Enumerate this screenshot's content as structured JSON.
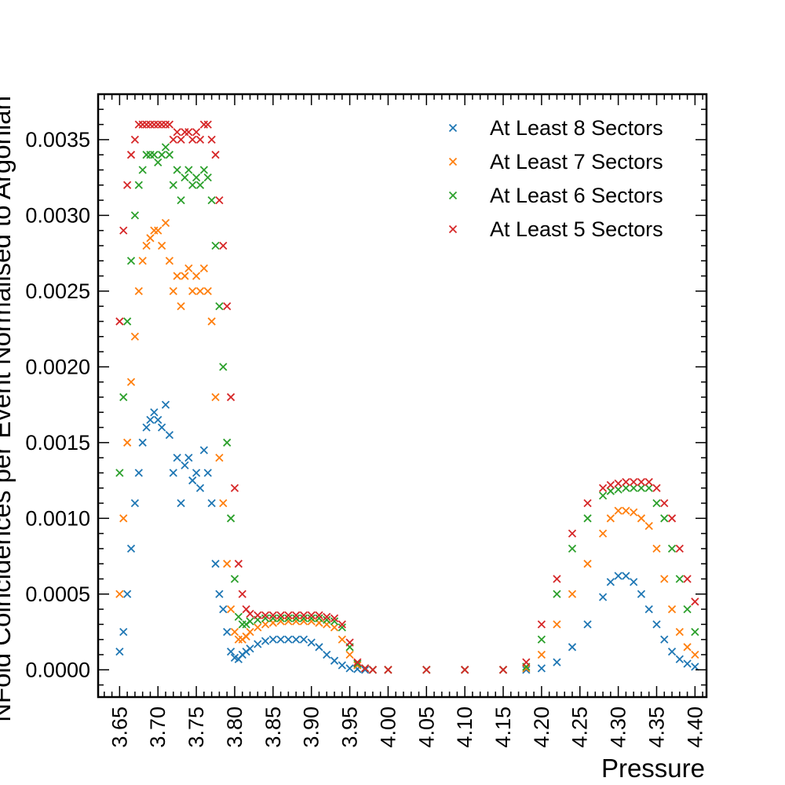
{
  "chart_data": {
    "type": "scatter",
    "marker": "x",
    "title": "",
    "xlabel": "Pressure",
    "ylabel": "NFold Coincidences per Event Normalised to Argonian",
    "xlim": [
      3.622,
      4.415
    ],
    "ylim": [
      -0.00018,
      0.0038
    ],
    "xticks": [
      "3.65",
      "3.70",
      "3.75",
      "3.80",
      "3.85",
      "3.90",
      "3.95",
      "4.00",
      "4.05",
      "4.10",
      "4.15",
      "4.20",
      "4.25",
      "4.30",
      "4.35",
      "4.40"
    ],
    "xtick_values": [
      3.65,
      3.7,
      3.75,
      3.8,
      3.85,
      3.9,
      3.95,
      4.0,
      4.05,
      4.1,
      4.15,
      4.2,
      4.25,
      4.3,
      4.35,
      4.4
    ],
    "yticks": [
      "0.0000",
      "0.0005",
      "0.0010",
      "0.0015",
      "0.0020",
      "0.0025",
      "0.0030",
      "0.0035"
    ],
    "ytick_values": [
      0,
      0.0005,
      0.001,
      0.0015,
      0.002,
      0.0025,
      0.003,
      0.0035
    ],
    "grid": false,
    "legend_position": "top-right",
    "series": [
      {
        "name": "At Least 8 Sectors",
        "color": "#1f77b4",
        "x": [
          3.65,
          3.655,
          3.66,
          3.665,
          3.67,
          3.675,
          3.68,
          3.685,
          3.69,
          3.695,
          3.7,
          3.705,
          3.71,
          3.715,
          3.72,
          3.725,
          3.73,
          3.735,
          3.74,
          3.745,
          3.75,
          3.755,
          3.76,
          3.765,
          3.77,
          3.775,
          3.78,
          3.785,
          3.79,
          3.795,
          3.8,
          3.805,
          3.81,
          3.815,
          3.82,
          3.83,
          3.84,
          3.85,
          3.86,
          3.87,
          3.88,
          3.89,
          3.9,
          3.91,
          3.92,
          3.93,
          3.94,
          3.95,
          3.96,
          3.97,
          3.98,
          4.0,
          4.05,
          4.1,
          4.15,
          4.18,
          4.2,
          4.22,
          4.24,
          4.26,
          4.28,
          4.29,
          4.3,
          4.31,
          4.32,
          4.33,
          4.34,
          4.35,
          4.36,
          4.37,
          4.38,
          4.39,
          4.4
        ],
        "y": [
          0.00012,
          0.00025,
          0.0005,
          0.0008,
          0.0011,
          0.0013,
          0.0015,
          0.0016,
          0.00165,
          0.0017,
          0.00165,
          0.0016,
          0.00175,
          0.00155,
          0.0013,
          0.0014,
          0.0011,
          0.00135,
          0.0014,
          0.00125,
          0.0013,
          0.0012,
          0.00145,
          0.0013,
          0.0011,
          0.0007,
          0.0005,
          0.0004,
          0.00025,
          0.00012,
          8e-05,
          7e-05,
          0.0001,
          0.00012,
          0.00014,
          0.00017,
          0.00019,
          0.0002,
          0.0002,
          0.0002,
          0.0002,
          0.0002,
          0.00018,
          0.00015,
          0.0001,
          6e-05,
          3e-05,
          1e-05,
          5e-06,
          0.0,
          0.0,
          0.0,
          0.0,
          0.0,
          0.0,
          0.0,
          1e-05,
          5e-05,
          0.00015,
          0.0003,
          0.00048,
          0.00058,
          0.00062,
          0.00062,
          0.00058,
          0.0005,
          0.0004,
          0.0003,
          0.0002,
          0.00012,
          7e-05,
          4e-05,
          2e-05
        ]
      },
      {
        "name": "At Least 7 Sectors",
        "color": "#ff7f0e",
        "x": [
          3.65,
          3.655,
          3.66,
          3.665,
          3.67,
          3.675,
          3.68,
          3.685,
          3.69,
          3.695,
          3.7,
          3.705,
          3.71,
          3.715,
          3.72,
          3.725,
          3.73,
          3.735,
          3.74,
          3.745,
          3.75,
          3.755,
          3.76,
          3.765,
          3.77,
          3.775,
          3.78,
          3.785,
          3.79,
          3.795,
          3.8,
          3.805,
          3.81,
          3.815,
          3.82,
          3.83,
          3.84,
          3.85,
          3.86,
          3.87,
          3.88,
          3.89,
          3.9,
          3.91,
          3.92,
          3.93,
          3.94,
          3.95,
          3.96,
          3.97,
          3.98,
          4.0,
          4.05,
          4.1,
          4.15,
          4.18,
          4.2,
          4.22,
          4.24,
          4.26,
          4.28,
          4.29,
          4.3,
          4.31,
          4.32,
          4.33,
          4.34,
          4.35,
          4.36,
          4.37,
          4.38,
          4.39,
          4.4
        ],
        "y": [
          0.0005,
          0.001,
          0.0015,
          0.0019,
          0.0022,
          0.0025,
          0.0027,
          0.0028,
          0.00285,
          0.0029,
          0.0029,
          0.0028,
          0.00295,
          0.0027,
          0.0025,
          0.0026,
          0.0024,
          0.0026,
          0.00265,
          0.0025,
          0.0026,
          0.0025,
          0.00265,
          0.0025,
          0.0023,
          0.0018,
          0.0014,
          0.0011,
          0.0007,
          0.0004,
          0.00025,
          0.0002,
          0.0002,
          0.00022,
          0.00025,
          0.00028,
          0.0003,
          0.00031,
          0.00032,
          0.00032,
          0.00032,
          0.00032,
          0.00032,
          0.00031,
          0.0003,
          0.00028,
          0.0002,
          0.0001,
          3e-05,
          1e-05,
          0.0,
          0.0,
          0.0,
          0.0,
          0.0,
          1e-05,
          0.0001,
          0.0003,
          0.0005,
          0.0007,
          0.0009,
          0.001,
          0.00105,
          0.00105,
          0.00104,
          0.001,
          0.00095,
          0.0008,
          0.0006,
          0.0004,
          0.00025,
          0.00015,
          0.0001
        ]
      },
      {
        "name": "At Least 6 Sectors",
        "color": "#2ca02c",
        "x": [
          3.65,
          3.655,
          3.66,
          3.665,
          3.67,
          3.675,
          3.68,
          3.685,
          3.69,
          3.695,
          3.7,
          3.705,
          3.71,
          3.715,
          3.72,
          3.725,
          3.73,
          3.735,
          3.74,
          3.745,
          3.75,
          3.755,
          3.76,
          3.765,
          3.77,
          3.775,
          3.78,
          3.785,
          3.79,
          3.795,
          3.8,
          3.805,
          3.81,
          3.815,
          3.82,
          3.83,
          3.84,
          3.85,
          3.86,
          3.87,
          3.88,
          3.89,
          3.9,
          3.91,
          3.92,
          3.93,
          3.94,
          3.95,
          3.96,
          3.97,
          3.98,
          4.0,
          4.05,
          4.1,
          4.15,
          4.18,
          4.2,
          4.22,
          4.24,
          4.26,
          4.28,
          4.29,
          4.3,
          4.31,
          4.32,
          4.33,
          4.34,
          4.35,
          4.36,
          4.37,
          4.38,
          4.39,
          4.4
        ],
        "y": [
          0.0013,
          0.0018,
          0.0023,
          0.0027,
          0.003,
          0.0032,
          0.0033,
          0.0034,
          0.0034,
          0.0034,
          0.00335,
          0.0034,
          0.00345,
          0.0034,
          0.0032,
          0.0033,
          0.0031,
          0.00325,
          0.0033,
          0.0032,
          0.00325,
          0.0032,
          0.0033,
          0.00325,
          0.0031,
          0.0028,
          0.0024,
          0.002,
          0.0015,
          0.001,
          0.0006,
          0.00035,
          0.0003,
          0.0003,
          0.00032,
          0.00033,
          0.00034,
          0.00034,
          0.00034,
          0.00034,
          0.00034,
          0.00034,
          0.00034,
          0.00034,
          0.00033,
          0.00032,
          0.00028,
          0.00015,
          4e-05,
          1e-05,
          0.0,
          0.0,
          0.0,
          0.0,
          0.0,
          2e-05,
          0.0002,
          0.0005,
          0.0008,
          0.001,
          0.00115,
          0.00118,
          0.00119,
          0.0012,
          0.0012,
          0.0012,
          0.0012,
          0.0011,
          0.001,
          0.0008,
          0.0006,
          0.0004,
          0.00025
        ]
      },
      {
        "name": "At Least 5 Sectors",
        "color": "#d62728",
        "x": [
          3.65,
          3.655,
          3.66,
          3.665,
          3.67,
          3.675,
          3.68,
          3.685,
          3.69,
          3.695,
          3.7,
          3.705,
          3.71,
          3.715,
          3.72,
          3.725,
          3.73,
          3.735,
          3.74,
          3.745,
          3.75,
          3.755,
          3.76,
          3.765,
          3.77,
          3.775,
          3.78,
          3.785,
          3.79,
          3.795,
          3.8,
          3.805,
          3.81,
          3.815,
          3.82,
          3.83,
          3.84,
          3.85,
          3.86,
          3.87,
          3.88,
          3.89,
          3.9,
          3.91,
          3.92,
          3.93,
          3.94,
          3.95,
          3.96,
          3.97,
          3.98,
          4.0,
          4.05,
          4.1,
          4.15,
          4.18,
          4.2,
          4.22,
          4.24,
          4.26,
          4.28,
          4.29,
          4.3,
          4.31,
          4.32,
          4.33,
          4.34,
          4.35,
          4.36,
          4.37,
          4.38,
          4.39,
          4.4
        ],
        "y": [
          0.0023,
          0.0029,
          0.0032,
          0.0034,
          0.0035,
          0.0036,
          0.0036,
          0.0036,
          0.0036,
          0.0036,
          0.0036,
          0.0036,
          0.0036,
          0.0036,
          0.0035,
          0.00355,
          0.0035,
          0.00355,
          0.00355,
          0.0035,
          0.00355,
          0.0035,
          0.0036,
          0.0036,
          0.0035,
          0.0034,
          0.0031,
          0.0028,
          0.0024,
          0.0018,
          0.0012,
          0.0007,
          0.0005,
          0.0004,
          0.00037,
          0.00036,
          0.00036,
          0.00036,
          0.00036,
          0.00036,
          0.00036,
          0.00036,
          0.00036,
          0.00036,
          0.00035,
          0.00034,
          0.0003,
          0.00018,
          5e-05,
          1e-05,
          0.0,
          0.0,
          0.0,
          0.0,
          0.0,
          5e-05,
          0.0003,
          0.0006,
          0.0009,
          0.0011,
          0.0012,
          0.00122,
          0.00123,
          0.00124,
          0.00124,
          0.00124,
          0.00124,
          0.0012,
          0.0011,
          0.001,
          0.0008,
          0.0006,
          0.00045
        ]
      }
    ]
  }
}
